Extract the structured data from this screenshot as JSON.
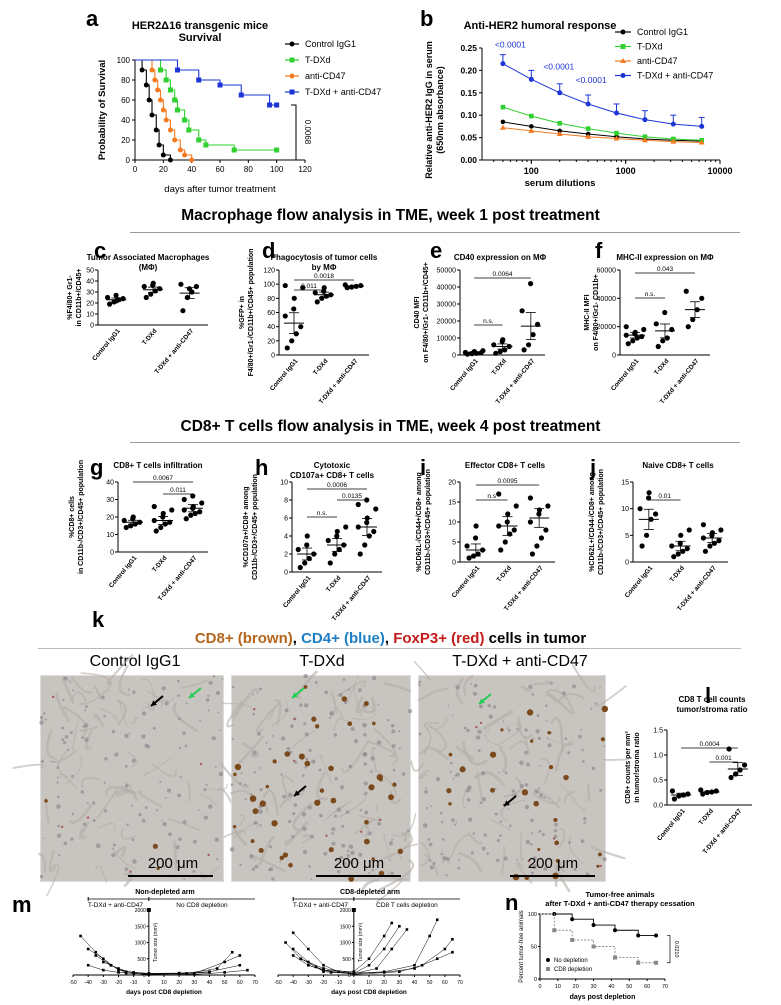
{
  "panels": {
    "a": {
      "letter": "a",
      "title1": "HER2Δ16 transgenic mice",
      "title2": "Survival",
      "ylabel": "Probability of Survival",
      "xlabel": "days after tumor treatment",
      "pvalue": "0.0068",
      "legend": [
        "Control IgG1",
        "T-DXd",
        "anti-CD47",
        "T-DXd + anti-CD47"
      ],
      "xticks": [
        "0",
        "20",
        "40",
        "60",
        "80",
        "100",
        "120"
      ],
      "yticks": [
        "0",
        "20",
        "40",
        "60",
        "80",
        "100"
      ]
    },
    "b": {
      "letter": "b",
      "title": "Anti-HER2 humoral response",
      "ylabel1": "Relative anti-HER2 IgG in serum",
      "ylabel2": "(650nm absorbance)",
      "xlabel": "serum dilutions",
      "legend": [
        "Control IgG1",
        "T-DXd",
        "anti-CD47",
        "T-DXd + anti-CD47"
      ],
      "pvals": [
        "<0.0001",
        "<0.0001",
        "<0.0001"
      ],
      "xticks": [
        "100",
        "1000",
        "10000"
      ],
      "yticks": [
        "0.00",
        "0.05",
        "0.10",
        "0.15",
        "0.20",
        "0.25"
      ]
    },
    "c": {
      "letter": "c",
      "title1": "Tumor Associated Macrophages",
      "title2": "(MΦ)",
      "ylabel1": "%F4/80+ Gr1-",
      "ylabel2": "in CD11b+/CD45+",
      "yticks": [
        "0",
        "10",
        "20",
        "30",
        "40",
        "50"
      ],
      "cats": [
        "Control IgG1",
        "T-DXd",
        "T-DXd + anti-CD47"
      ]
    },
    "d": {
      "letter": "d",
      "title1": "Phagocytosis of tumor cells",
      "title2": "by MΦ",
      "ylabel1": "%GFP+ in",
      "ylabel2": "F4/80+/Gr1-/CD11b+/CD45+ population",
      "pvals": [
        "0.011",
        "0.0018"
      ],
      "yticks": [
        "0",
        "20",
        "40",
        "60",
        "80",
        "100",
        "120"
      ],
      "cats": [
        "Control IgG1",
        "T-DXd",
        "T-DXd + anti-CD47"
      ]
    },
    "e": {
      "letter": "e",
      "title": "CD40 expression on MΦ",
      "ylabel1": "CD40 MFI",
      "ylabel2": "on F4/80+/Gr1- CD11b+/CD45+",
      "pvals": [
        "n.s.",
        "0.0064"
      ],
      "yticks": [
        "0",
        "10000",
        "20000",
        "30000",
        "40000",
        "50000"
      ],
      "cats": [
        "Control IgG1",
        "T-DXd",
        "T-DXd + anti-CD47"
      ]
    },
    "f": {
      "letter": "f",
      "title": "MHC-II expression on MΦ",
      "ylabel1": "MHC-II MFI",
      "ylabel2": "on F4/80+/Gr1- CD11b+",
      "pvals": [
        "n.s.",
        "0.043"
      ],
      "yticks": [
        "0",
        "20000",
        "40000",
        "60000"
      ],
      "cats": [
        "Control IgG1",
        "T-DXd",
        "T-DXd + anti-CD47"
      ]
    },
    "g": {
      "letter": "g",
      "title": "CD8+ T cells infiltration",
      "ylabel1": "%CD8+ cells",
      "ylabel2": "in CD11b-/CD3+/CD45+ population",
      "pvals": [
        "0.0067",
        "0.011"
      ],
      "yticks": [
        "0",
        "10",
        "20",
        "30",
        "40"
      ],
      "cats": [
        "Control IgG1",
        "T-DXd",
        "T-DXd + anti-CD47"
      ]
    },
    "h": {
      "letter": "h",
      "title1": "Cytotoxic",
      "title2": "CD107a+ CD8+ T cells",
      "ylabel1": "%CD107a+/CD8+ among",
      "ylabel2": "CD11b-/CD3+/CD45+ population",
      "pvals": [
        "n.s.",
        "0.0006",
        "0.0135"
      ],
      "yticks": [
        "0",
        "2",
        "4",
        "6",
        "8",
        "10"
      ],
      "cats": [
        "Control IgG1",
        "T-DXd",
        "T-DXd + anti-CD47"
      ]
    },
    "i": {
      "letter": "i",
      "title": "Effector CD8+ T cells",
      "ylabel1": "%CD62L-/CD44+/CD8+ among",
      "ylabel2": "CD11b-/CD3+/CD45+ population",
      "pvals": [
        "n.s",
        "0.0095"
      ],
      "yticks": [
        "0",
        "5",
        "10",
        "15",
        "20"
      ],
      "cats": [
        "Control IgG1",
        "T-DXd",
        "T-DXd + anti-CD47"
      ]
    },
    "j": {
      "letter": "j",
      "title": "Naive CD8+ T cells",
      "ylabel1": "%CD62L+/CD44-/CD8+ among",
      "ylabel2": "CD11b-/CD3+/CD45+ population",
      "pvals": [
        "0.01"
      ],
      "yticks": [
        "0",
        "5",
        "10",
        "15"
      ],
      "cats": [
        "Control IgG1",
        "T-DXd",
        "T-DXd + anti-CD47"
      ]
    },
    "k": {
      "letter": "k",
      "legend": {
        "cd8": "CD8+ (brown)",
        "sep1": ", ",
        "cd4": "CD4+ (blue)",
        "sep2": ", ",
        "foxp3": "FoxP3+ (red)",
        "rest": " cells in tumor"
      },
      "labels": [
        "Control IgG1",
        "T-DXd",
        "T-DXd + anti-CD47"
      ],
      "scale": "200 μm"
    },
    "l": {
      "letter": "l",
      "title1": "CD8 T cell counts",
      "title2": "tumor/stroma ratio",
      "ylabel1": "CD8+ counts per mm²",
      "ylabel2": "in tumor/stroma ratio",
      "pvals": [
        "0.0004",
        "0.001"
      ],
      "yticks": [
        "0.0",
        "0.5",
        "1.0",
        "1.5"
      ],
      "cats": [
        "Control IgG1",
        "T-DXd",
        "T-DXd + anti-CD47"
      ]
    },
    "m": {
      "letter": "m",
      "title1": "Non-depleted arm",
      "title2": "CD8-depleted arm",
      "bar1a": "T-DXd + anti-CD47",
      "bar1b": "No CD8 depletion",
      "bar2a": "T-DXd + anti-CD47",
      "bar2b": "CD8 T cells depletion",
      "ylabel": "Tumor size (mm³)",
      "xlabel": "days post CD8 depletion",
      "yticks": [
        "0",
        "500",
        "1000",
        "1500",
        "2000"
      ],
      "xticks": [
        "-50",
        "-40",
        "-30",
        "-20",
        "-10",
        "0",
        "10",
        "20",
        "30",
        "40",
        "50",
        "60",
        "70"
      ]
    },
    "n": {
      "letter": "n",
      "title1": "Tumor-free animals",
      "title2": "after T-DXd + anti-CD47 therapy cessation",
      "ylabel": "Percent tumor-free animals",
      "xlabel": "days post depletion",
      "legend": [
        "No depletion",
        "CD8 depletion"
      ],
      "pvalue": "0.0210",
      "yticks": [
        "0",
        "50",
        "100"
      ],
      "xticks": [
        "0",
        "10",
        "20",
        "30",
        "40",
        "50",
        "60",
        "70"
      ]
    }
  },
  "sections": {
    "macrophage": "Macrophage flow analysis in TME, week 1 post treatment",
    "cd8": "CD8+ T cells flow analysis in TME, week 4 post treatment"
  },
  "colors": {
    "black": "#000000",
    "green": "#2fd02f",
    "orange": "#f47a20",
    "blue": "#1d35d6",
    "brown": "#b5651d",
    "cd4blue": "#1f7fc6",
    "red": "#c41a1a"
  },
  "chart_data": [
    {
      "type": "line",
      "id": "a",
      "title": "HER2Δ16 transgenic mice Survival",
      "xlabel": "days after tumor treatment",
      "ylabel": "Probability of Survival",
      "xlim": [
        0,
        120
      ],
      "ylim": [
        0,
        100
      ],
      "series": [
        {
          "name": "Control IgG1",
          "x": [
            0,
            5,
            8,
            10,
            12,
            15,
            17,
            20,
            25
          ],
          "y": [
            100,
            90,
            75,
            60,
            45,
            30,
            15,
            5,
            0
          ]
        },
        {
          "name": "T-DXd",
          "x": [
            0,
            18,
            22,
            25,
            28,
            30,
            35,
            38,
            45,
            50,
            70,
            100
          ],
          "y": [
            100,
            90,
            80,
            70,
            60,
            50,
            40,
            30,
            20,
            15,
            10,
            10
          ]
        },
        {
          "name": "anti-CD47",
          "x": [
            0,
            12,
            14,
            16,
            18,
            20,
            22,
            25,
            28,
            32,
            35,
            40
          ],
          "y": [
            100,
            90,
            80,
            70,
            60,
            50,
            40,
            30,
            20,
            10,
            5,
            0
          ]
        },
        {
          "name": "T-DXd + anti-CD47",
          "x": [
            0,
            30,
            45,
            60,
            75,
            95,
            100
          ],
          "y": [
            100,
            90,
            80,
            75,
            65,
            55,
            55
          ]
        }
      ]
    },
    {
      "type": "line",
      "id": "b",
      "title": "Anti-HER2 humoral response",
      "xlabel": "serum dilutions",
      "ylabel": "Relative anti-HER2 IgG in serum (650nm absorbance)",
      "xscale": "log",
      "ylim": [
        0,
        0.25
      ],
      "x": [
        50,
        100,
        200,
        400,
        800,
        1600,
        3200,
        6400
      ],
      "series": [
        {
          "name": "Control IgG1",
          "values": [
            0.085,
            0.075,
            0.065,
            0.058,
            0.052,
            0.047,
            0.044,
            0.042
          ]
        },
        {
          "name": "T-DXd",
          "values": [
            0.118,
            0.098,
            0.082,
            0.07,
            0.06,
            0.052,
            0.047,
            0.044
          ]
        },
        {
          "name": "anti-CD47",
          "values": [
            0.072,
            0.065,
            0.058,
            0.052,
            0.048,
            0.044,
            0.041,
            0.039
          ]
        },
        {
          "name": "T-DXd + anti-CD47",
          "values": [
            0.215,
            0.18,
            0.15,
            0.125,
            0.105,
            0.09,
            0.08,
            0.075
          ]
        }
      ]
    },
    {
      "type": "scatter",
      "id": "c",
      "ylim": [
        0,
        50
      ],
      "means": [
        23,
        32,
        29
      ],
      "series": [
        {
          "name": "Control IgG1",
          "values": [
            19,
            21,
            23,
            24,
            25,
            27,
            22
          ]
        },
        {
          "name": "T-DXd",
          "values": [
            25,
            28,
            31,
            33,
            35,
            36,
            38
          ]
        },
        {
          "name": "T-DXd + anti-CD47",
          "values": [
            13,
            25,
            30,
            35,
            37,
            33
          ]
        }
      ]
    },
    {
      "type": "scatter",
      "id": "d",
      "ylim": [
        0,
        120
      ],
      "means": [
        45,
        85,
        97
      ],
      "series": [
        {
          "name": "Control IgG1",
          "values": [
            10,
            20,
            30,
            40,
            55,
            65,
            80,
            95,
            98
          ]
        },
        {
          "name": "T-DXd",
          "values": [
            75,
            80,
            83,
            85,
            88,
            90,
            95
          ]
        },
        {
          "name": "T-DXd + anti-CD47",
          "values": [
            95,
            96,
            97,
            98,
            99
          ]
        }
      ]
    },
    {
      "type": "scatter",
      "id": "e",
      "ylim": [
        0,
        50000
      ],
      "means": [
        1500,
        5000,
        17000
      ],
      "series": [
        {
          "name": "Control IgG1",
          "values": [
            500,
            800,
            1000,
            1200,
            1500,
            1800,
            2000,
            2500
          ]
        },
        {
          "name": "T-DXd",
          "values": [
            1000,
            2000,
            3000,
            5000,
            6000,
            8000,
            9000
          ]
        },
        {
          "name": "T-DXd + anti-CD47",
          "values": [
            3000,
            6000,
            12000,
            18000,
            26000,
            42000
          ]
        }
      ]
    },
    {
      "type": "scatter",
      "id": "f",
      "ylim": [
        0,
        60000
      ],
      "means": [
        14000,
        17000,
        32000
      ],
      "series": [
        {
          "name": "Control IgG1",
          "values": [
            8000,
            10000,
            12000,
            13000,
            14000,
            15000,
            16000,
            18000,
            20000
          ]
        },
        {
          "name": "T-DXd",
          "values": [
            6000,
            10000,
            12000,
            18000,
            22000,
            30000
          ]
        },
        {
          "name": "T-DXd + anti-CD47",
          "values": [
            20000,
            25000,
            32000,
            40000,
            45000
          ]
        }
      ]
    },
    {
      "type": "scatter",
      "id": "g",
      "ylim": [
        0,
        40
      ],
      "means": [
        17,
        18,
        25
      ],
      "series": [
        {
          "name": "Control IgG1",
          "values": [
            14,
            15,
            16,
            17,
            18,
            19,
            20
          ]
        },
        {
          "name": "T-DXd",
          "values": [
            12,
            14,
            16,
            17,
            18,
            20,
            22,
            24,
            26
          ]
        },
        {
          "name": "T-DXd + anti-CD47",
          "values": [
            19,
            21,
            22,
            23,
            24,
            25,
            26,
            28,
            30,
            32
          ]
        }
      ]
    },
    {
      "type": "scatter",
      "id": "h",
      "ylim": [
        0,
        10
      ],
      "means": [
        2,
        3,
        5
      ],
      "series": [
        {
          "name": "Control IgG1",
          "values": [
            0.5,
            1,
            1.5,
            2,
            2.5,
            3,
            4
          ]
        },
        {
          "name": "T-DXd",
          "values": [
            1,
            2,
            2.5,
            3,
            3.5,
            4,
            4.5,
            5
          ]
        },
        {
          "name": "T-DXd + anti-CD47",
          "values": [
            2,
            3,
            4,
            4.5,
            5,
            5.5,
            6,
            7,
            7.5,
            8
          ]
        }
      ]
    },
    {
      "type": "scatter",
      "id": "i",
      "ylim": [
        0,
        20
      ],
      "means": [
        3,
        9,
        11
      ],
      "series": [
        {
          "name": "Control IgG1",
          "values": [
            1,
            1.5,
            2,
            3,
            4,
            6,
            9
          ]
        },
        {
          "name": "T-DXd",
          "values": [
            3,
            5,
            7,
            8,
            9,
            10,
            12,
            14,
            17
          ]
        },
        {
          "name": "T-DXd + anti-CD47",
          "values": [
            2,
            4,
            6,
            8,
            10,
            12,
            13,
            14,
            16
          ]
        }
      ]
    },
    {
      "type": "scatter",
      "id": "j",
      "ylim": [
        0,
        15
      ],
      "means": [
        8,
        3,
        4.5
      ],
      "series": [
        {
          "name": "Control IgG1",
          "values": [
            3,
            5,
            8,
            9,
            10,
            12,
            13
          ]
        },
        {
          "name": "T-DXd",
          "values": [
            1,
            1.5,
            2,
            2.5,
            3,
            3.5,
            5,
            6
          ]
        },
        {
          "name": "T-DXd + anti-CD47",
          "values": [
            2,
            3,
            3.5,
            4,
            4.5,
            5,
            5.5,
            6,
            7
          ]
        }
      ]
    },
    {
      "type": "scatter",
      "id": "l",
      "ylim": [
        0,
        1.5
      ],
      "means": [
        0.2,
        0.26,
        0.72
      ],
      "series": [
        {
          "name": "Control IgG1",
          "values": [
            0.12,
            0.18,
            0.2,
            0.22,
            0.28
          ]
        },
        {
          "name": "T-DXd",
          "values": [
            0.22,
            0.25,
            0.26,
            0.28,
            0.3
          ]
        },
        {
          "name": "T-DXd + anti-CD47",
          "values": [
            0.55,
            0.62,
            0.7,
            0.8,
            1.12
          ]
        }
      ]
    },
    {
      "type": "line",
      "id": "m1",
      "title": "Non-depleted arm",
      "xlim": [
        -50,
        70
      ],
      "ylim": [
        0,
        2000
      ]
    },
    {
      "type": "line",
      "id": "m2",
      "title": "CD8-depleted arm",
      "xlim": [
        -50,
        70
      ],
      "ylim": [
        0,
        2000
      ]
    },
    {
      "type": "line",
      "id": "n",
      "title": "Tumor-free animals after T-DXd + anti-CD47 therapy cessation",
      "xlim": [
        0,
        70
      ],
      "ylim": [
        0,
        100
      ],
      "series": [
        {
          "name": "No depletion",
          "x": [
            0,
            8,
            18,
            30,
            42,
            55,
            65
          ],
          "y": [
            100,
            100,
            92,
            83,
            75,
            67,
            67
          ]
        },
        {
          "name": "CD8 depletion",
          "x": [
            0,
            8,
            18,
            30,
            42,
            55,
            65
          ],
          "y": [
            100,
            75,
            60,
            50,
            33,
            25,
            25
          ]
        }
      ]
    }
  ]
}
